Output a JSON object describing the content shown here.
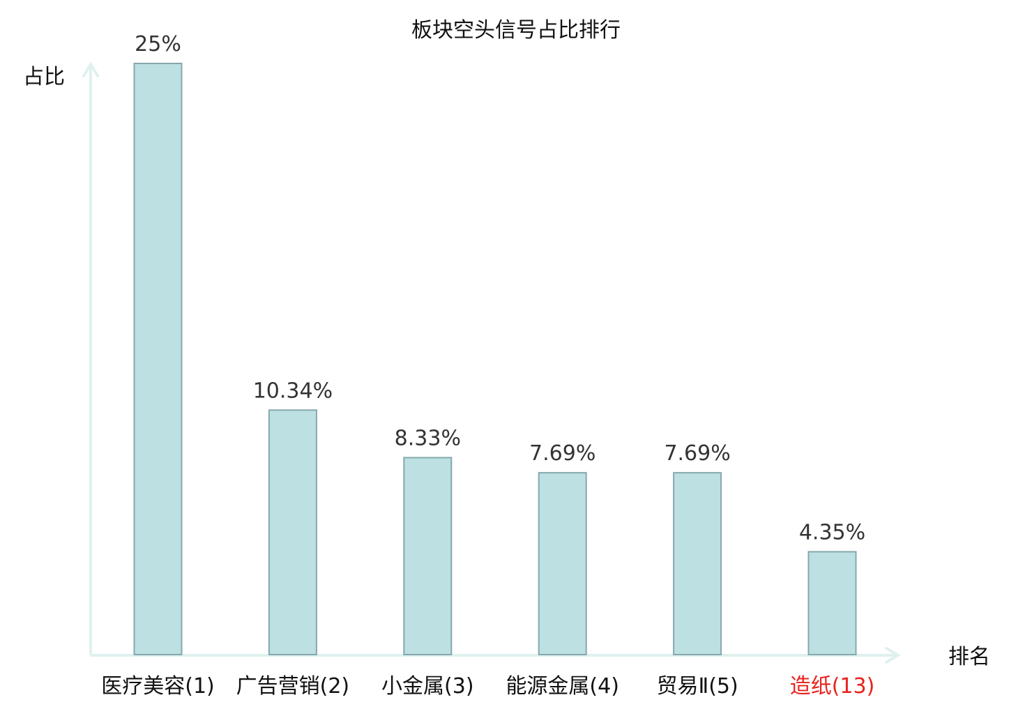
{
  "chart_data": {
    "type": "bar",
    "title": "板块空头信号占比排行",
    "xlabel": "排名",
    "ylabel": "占比",
    "categories": [
      "医疗美容(1)",
      "广告营销(2)",
      "小金属(3)",
      "能源金属(4)",
      "贸易Ⅱ(5)",
      "造纸(13)"
    ],
    "values": [
      25,
      10.34,
      8.33,
      7.69,
      7.69,
      4.35
    ],
    "value_labels": [
      "25%",
      "10.34%",
      "8.33%",
      "7.69%",
      "7.69%",
      "4.35%"
    ],
    "ylim": [
      0,
      25
    ],
    "grid": false,
    "highlight_index": 5
  },
  "colors": {
    "bar_fill": "#bde0e3",
    "bar_stroke": "#86a8ab",
    "axis": "#dff1ef",
    "text": "#111111",
    "value_text": "#333333",
    "highlight_text": "#e8211c"
  }
}
